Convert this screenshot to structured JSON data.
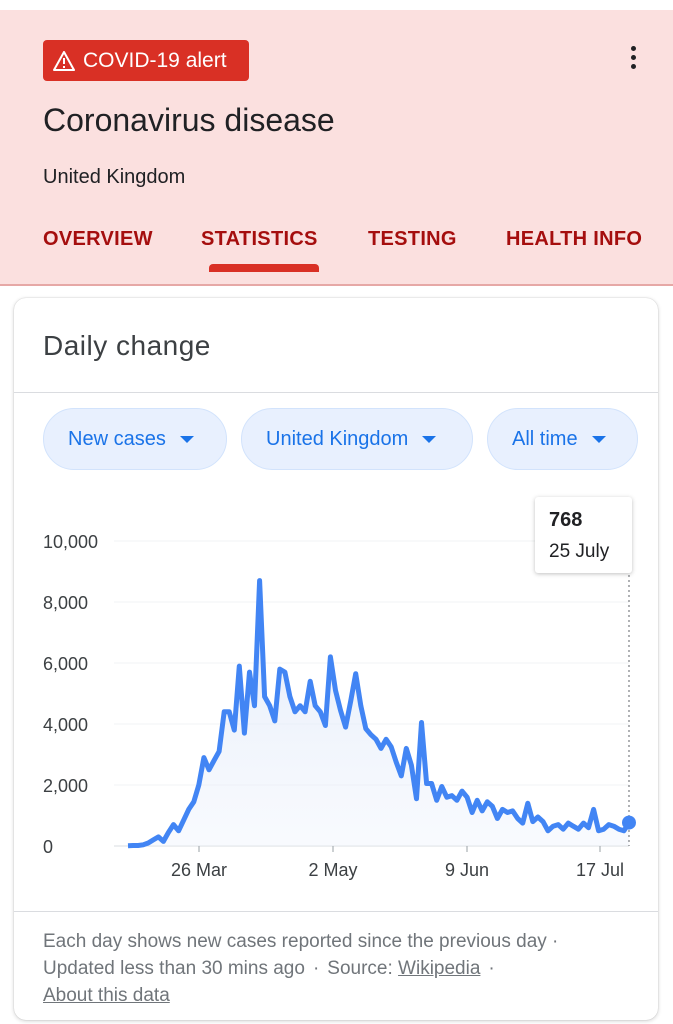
{
  "header": {
    "alert_label": "COVID-19 alert",
    "title": "Coronavirus disease",
    "subtitle": "United Kingdom",
    "tabs": [
      {
        "label": "OVERVIEW"
      },
      {
        "label": "STATISTICS"
      },
      {
        "label": "TESTING"
      },
      {
        "label": "HEALTH INFO"
      }
    ],
    "active_tab": "STATISTICS"
  },
  "card": {
    "title": "Daily change",
    "chips": [
      {
        "label": "New cases"
      },
      {
        "label": "United Kingdom"
      },
      {
        "label": "All time"
      }
    ],
    "tooltip": {
      "value": "768",
      "date": "25 July"
    },
    "footer": {
      "line1": "Each day shows new cases reported since the previous day ·",
      "updated": "Updated less than 30 mins ago",
      "source_label": "Source:",
      "source_link": "Wikipedia",
      "about_link": "About this data"
    }
  },
  "colors": {
    "header_bg": "#fbe0df",
    "alert_bg": "#d93025",
    "tab_text": "#a50e0e",
    "line": "#4285f4",
    "chip_bg": "#e8f0fe",
    "chip_text": "#1a73e8"
  },
  "chart_data": {
    "type": "area",
    "series": [
      {
        "values": [
          10,
          15,
          15,
          40,
          100,
          200,
          300,
          150,
          450,
          700,
          500,
          850,
          1200,
          1450,
          2000,
          2900,
          2500,
          2800,
          3100,
          4400,
          4400,
          3800,
          5900,
          3700,
          5700,
          4600,
          8700,
          4900,
          4600,
          4100,
          5800,
          5700,
          4900,
          4400,
          4600,
          4400,
          5400,
          4600,
          4400,
          3950,
          6200,
          5100,
          4450,
          3900,
          4750,
          5650,
          4600,
          3850,
          3650,
          3500,
          3200,
          3500,
          3250,
          2750,
          2300,
          3200,
          2650,
          1550,
          4050,
          2050,
          2050,
          1500,
          1950,
          1600,
          1650,
          1500,
          1800,
          1600,
          1100,
          1500,
          1150,
          1450,
          1300,
          900,
          1200,
          1100,
          1150,
          900,
          750,
          1400,
          800,
          950,
          800,
          500,
          650,
          700,
          550,
          750,
          650,
          550,
          750,
          600,
          1200,
          500,
          550,
          700,
          650,
          550,
          500,
          768
        ]
      }
    ],
    "x_tick_labels": [
      "26 Mar",
      "2 May",
      "9 Jun",
      "17 Jul"
    ],
    "y_tick_labels": [
      "10,000",
      "8,000",
      "6,000",
      "4,000",
      "2,000",
      "0"
    ],
    "ylim": [
      0,
      10000
    ],
    "grid": true,
    "highlight": {
      "label": "25 July",
      "value": 768
    }
  }
}
